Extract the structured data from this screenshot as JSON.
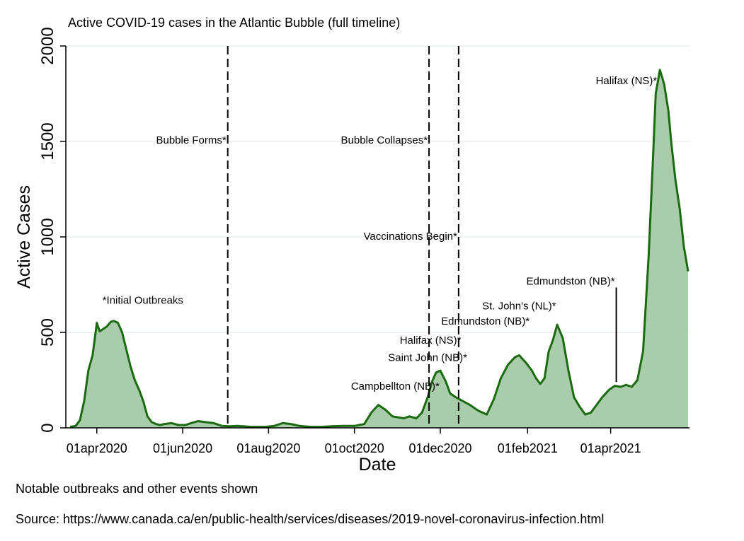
{
  "chart_data": {
    "type": "area",
    "title": "Active COVID-19 cases in the Atlantic Bubble (full timeline)",
    "xlabel": "Date",
    "ylabel": "Active Cases",
    "ylim": [
      0,
      2000
    ],
    "xlim": [
      "2020-03-10",
      "2021-05-27"
    ],
    "yticks": [
      0,
      500,
      1000,
      1500,
      2000
    ],
    "ytick_labels": [
      "0",
      "500",
      "1000",
      "1500",
      "2000"
    ],
    "xticks": [
      "2020-04-01",
      "2020-06-01",
      "2020-08-01",
      "2020-10-01",
      "2020-12-01",
      "2021-02-01",
      "2021-04-01"
    ],
    "xtick_labels": [
      "01apr2020",
      "01jun2020",
      "01aug2020",
      "01oct2020",
      "01dec2020",
      "01feb2021",
      "01apr2021"
    ],
    "grid": true,
    "line_color": "#1a6b0f",
    "fill_color": "#a9ccab",
    "series": [
      {
        "x": [
          "2020-03-13",
          "2020-03-17",
          "2020-03-20",
          "2020-03-23",
          "2020-03-26",
          "2020-03-29",
          "2020-04-01",
          "2020-04-03",
          "2020-04-04",
          "2020-04-05",
          "2020-04-08",
          "2020-04-11",
          "2020-04-13",
          "2020-04-16",
          "2020-04-19",
          "2020-04-22",
          "2020-04-25",
          "2020-04-28",
          "2020-05-01",
          "2020-05-04",
          "2020-05-07",
          "2020-05-10",
          "2020-05-13",
          "2020-05-16",
          "2020-05-19",
          "2020-05-24",
          "2020-05-29",
          "2020-06-03",
          "2020-06-07",
          "2020-06-12",
          "2020-06-17",
          "2020-06-23",
          "2020-06-29",
          "2020-07-04",
          "2020-07-10",
          "2020-07-20",
          "2020-07-30",
          "2020-08-05",
          "2020-08-11",
          "2020-08-17",
          "2020-08-23",
          "2020-08-31",
          "2020-09-07",
          "2020-09-15",
          "2020-09-23",
          "2020-10-01",
          "2020-10-08",
          "2020-10-13",
          "2020-10-18",
          "2020-10-23",
          "2020-10-28",
          "2020-11-01",
          "2020-11-05",
          "2020-11-09",
          "2020-11-14",
          "2020-11-18",
          "2020-11-22",
          "2020-11-25",
          "2020-11-28",
          "2020-12-01",
          "2020-12-05",
          "2020-12-08",
          "2020-12-12",
          "2020-12-17",
          "2020-12-22",
          "2020-12-28",
          "2021-01-03",
          "2021-01-08",
          "2021-01-13",
          "2021-01-18",
          "2021-01-23",
          "2021-01-26",
          "2021-01-31",
          "2021-02-04",
          "2021-02-07",
          "2021-02-10",
          "2021-02-13",
          "2021-02-16",
          "2021-02-19",
          "2021-02-22",
          "2021-02-26",
          "2021-03-02",
          "2021-03-06",
          "2021-03-10",
          "2021-03-14",
          "2021-03-18",
          "2021-03-22",
          "2021-03-26",
          "2021-03-31",
          "2021-04-04",
          "2021-04-08",
          "2021-04-12",
          "2021-04-16",
          "2021-04-20",
          "2021-04-24",
          "2021-04-28",
          "2021-05-01",
          "2021-05-03",
          "2021-05-06",
          "2021-05-09",
          "2021-05-12",
          "2021-05-14",
          "2021-05-17",
          "2021-05-20",
          "2021-05-23",
          "2021-05-26"
        ],
        "values": [
          5,
          10,
          40,
          140,
          300,
          380,
          550,
          505,
          510,
          515,
          530,
          555,
          560,
          550,
          500,
          410,
          320,
          250,
          200,
          140,
          60,
          30,
          20,
          15,
          20,
          25,
          15,
          15,
          25,
          35,
          30,
          25,
          10,
          8,
          10,
          5,
          5,
          10,
          25,
          20,
          10,
          5,
          5,
          8,
          10,
          10,
          20,
          80,
          120,
          95,
          60,
          55,
          50,
          60,
          50,
          80,
          160,
          240,
          290,
          300,
          240,
          180,
          160,
          140,
          120,
          90,
          70,
          150,
          260,
          330,
          370,
          380,
          340,
          300,
          260,
          230,
          260,
          400,
          460,
          540,
          470,
          300,
          160,
          110,
          70,
          80,
          120,
          160,
          200,
          220,
          215,
          225,
          215,
          250,
          400,
          900,
          1400,
          1750,
          1875,
          1800,
          1660,
          1500,
          1300,
          1150,
          950,
          820
        ]
      }
    ],
    "event_lines": [
      {
        "date": "2020-07-03",
        "label": "Bubble Forms*"
      },
      {
        "date": "2020-11-23",
        "label": "Bubble Collapses*"
      },
      {
        "date": "2020-12-14",
        "label": "Vaccinations Begin*"
      }
    ],
    "annotations": [
      {
        "label": "*Initial Outbreaks",
        "date": "2020-04-05",
        "value": 650
      },
      {
        "label": "Campbellton (NB)*",
        "date": "2020-10-30",
        "value": 200
      },
      {
        "label": "Saint John (NB)*",
        "date": "2020-11-22",
        "value": 350
      },
      {
        "label": "Halifax (NS)*",
        "date": "2020-11-24",
        "value": 440
      },
      {
        "label": "Edmundston (NB)*",
        "date": "2021-01-02",
        "value": 540
      },
      {
        "label": "St. John's (NL)*",
        "date": "2021-01-26",
        "value": 620
      },
      {
        "label": "Edmundston (NB)*",
        "date": "2021-04-04",
        "value": 750
      },
      {
        "label": "Halifax (NS)*",
        "date": "2021-05-04",
        "value": 1800
      }
    ],
    "marker_line": {
      "date": "2021-04-05",
      "from": 240,
      "to": 750
    }
  },
  "notes": {
    "line1": "Notable outbreaks and other events shown",
    "line2": "Source: https://www.canada.ca/en/public-health/services/diseases/2019-novel-coronavirus-infection.html"
  }
}
